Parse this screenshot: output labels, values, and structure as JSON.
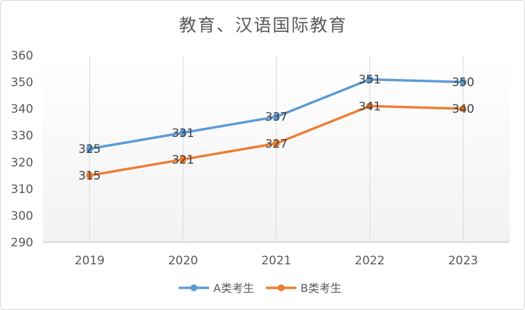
{
  "chart_data": {
    "type": "line",
    "title": "教育、汉语国际教育",
    "categories": [
      "2019",
      "2020",
      "2021",
      "2022",
      "2023"
    ],
    "series": [
      {
        "name": "A类考生",
        "values": [
          325,
          331,
          337,
          351,
          350
        ],
        "color": "#5b9bd5"
      },
      {
        "name": "B类考生",
        "values": [
          315,
          321,
          327,
          341,
          340
        ],
        "color": "#ed7d31"
      }
    ],
    "ylim": [
      290,
      360
    ],
    "yticks": [
      290,
      300,
      310,
      320,
      330,
      340,
      350,
      360
    ],
    "grid": "vertical",
    "legend": "bottom"
  }
}
